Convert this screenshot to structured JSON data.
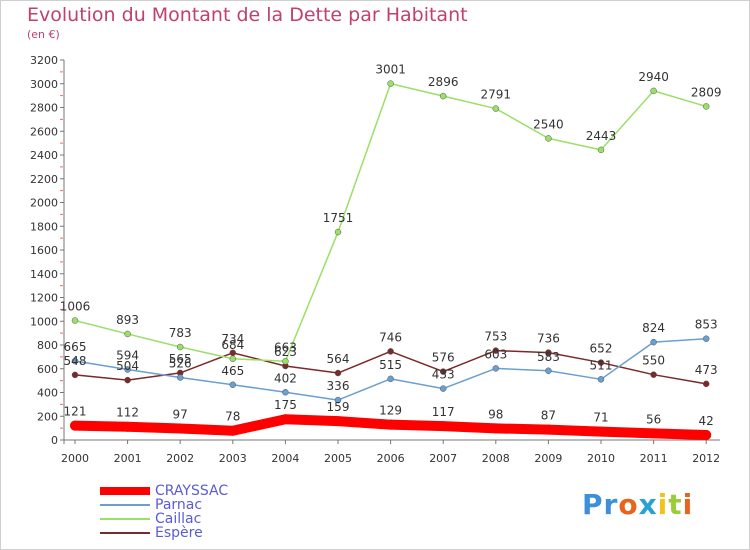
{
  "title": "Evolution du Montant de la Dette par Habitant",
  "subtitle": "(en €)",
  "chart_data": {
    "type": "line",
    "x": [
      "2000",
      "2001",
      "2002",
      "2003",
      "2004",
      "2005",
      "2006",
      "2007",
      "2008",
      "2009",
      "2010",
      "2011",
      "2012"
    ],
    "ylim": [
      0,
      3200
    ],
    "yticks": [
      0,
      200,
      400,
      600,
      800,
      1000,
      1200,
      1400,
      1600,
      1800,
      2000,
      2200,
      2400,
      2600,
      2800,
      3000,
      3200
    ],
    "grid": false,
    "legend_position": "bottom-left",
    "series": [
      {
        "name": "CRAYSSAC",
        "color": "#ff0000",
        "values": [
          121,
          112,
          97,
          78,
          175,
          159,
          129,
          117,
          98,
          87,
          71,
          56,
          42
        ]
      },
      {
        "name": "Parnac",
        "color": "#6a9fd0",
        "values": [
          665,
          594,
          526,
          465,
          402,
          336,
          515,
          433,
          603,
          583,
          511,
          824,
          853
        ]
      },
      {
        "name": "Caillac",
        "color": "#99e066",
        "values": [
          1006,
          893,
          783,
          684,
          663,
          1751,
          3001,
          2896,
          2791,
          2540,
          2443,
          2940,
          2809
        ]
      },
      {
        "name": "Espère",
        "color": "#7a2a2a",
        "values": [
          548,
          504,
          565,
          734,
          623,
          564,
          746,
          576,
          753,
          736,
          652,
          550,
          473
        ]
      }
    ]
  },
  "logo": {
    "letters": [
      "P",
      "r",
      "o",
      "x",
      "i",
      "t",
      "i"
    ],
    "colors": [
      "#3c8fd8",
      "#3c8fd8",
      "#e8631b",
      "#2aa1d6",
      "#f0c419",
      "#9ccc3a",
      "#e8631b"
    ]
  }
}
